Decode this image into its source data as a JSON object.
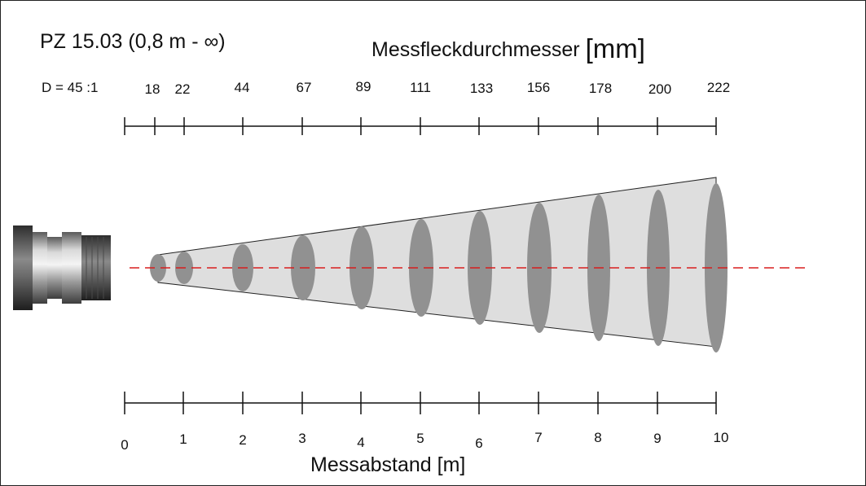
{
  "title": "PZ 15.03 (0,8 m - ∞)",
  "spot_heading": "Messfleckdurchmesser",
  "spot_unit": "[mm]",
  "ratio_label": "D = 45 :1",
  "distance_heading": "Messabstand [m]",
  "spot_ticks": [
    "18",
    "22",
    "44",
    "67",
    "89",
    "111",
    "133",
    "156",
    "178",
    "200",
    "222"
  ],
  "distance_ticks": [
    "0",
    "1",
    "2",
    "3",
    "4",
    "5",
    "6",
    "7",
    "8",
    "9",
    "10"
  ],
  "colors": {
    "cone_fill": "#dedede",
    "spot_fill": "#919191",
    "axis_line": "#d81e1e",
    "ink": "#111111"
  },
  "icons": [
    "sensor-lens-icon"
  ]
}
